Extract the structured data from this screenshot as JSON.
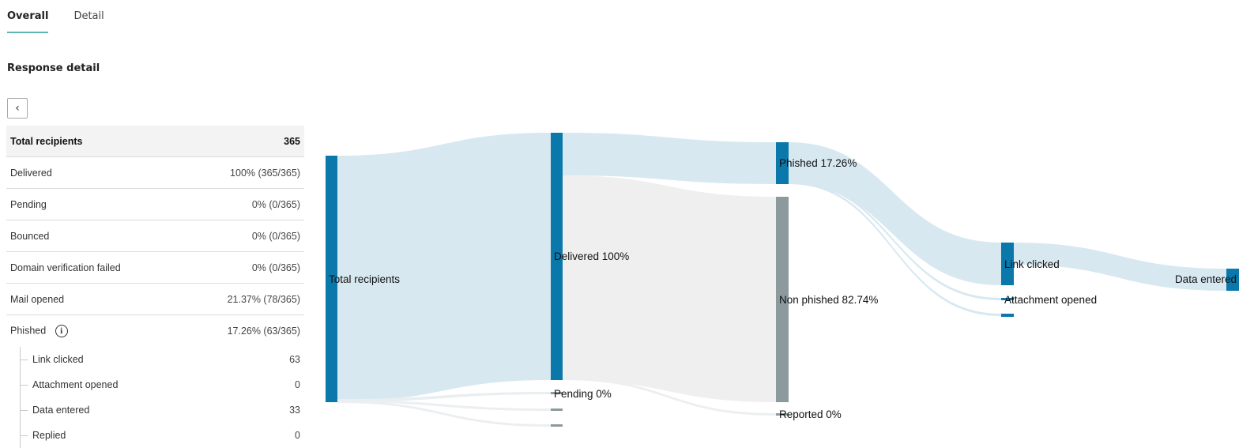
{
  "tabs": [
    {
      "label": "Overall",
      "active": true
    },
    {
      "label": "Detail",
      "active": false
    }
  ],
  "section_title": "Response detail",
  "back_icon": "chevron-left-icon",
  "summary": {
    "header": {
      "label": "Total recipients",
      "value": "365"
    },
    "rows": [
      {
        "label": "Delivered",
        "value": "100% (365/365)"
      },
      {
        "label": "Pending",
        "value": "0% (0/365)"
      },
      {
        "label": "Bounced",
        "value": "0% (0/365)"
      },
      {
        "label": "Domain verification failed",
        "value": "0% (0/365)"
      },
      {
        "label": "Mail opened",
        "value": "21.37% (78/365)"
      },
      {
        "label": "Phished",
        "value": "17.26% (63/365)",
        "info_icon": "i"
      }
    ],
    "subrows": [
      {
        "label": "Link clicked",
        "value": "63"
      },
      {
        "label": "Attachment opened",
        "value": "0"
      },
      {
        "label": "Data entered",
        "value": "33"
      },
      {
        "label": "Replied",
        "value": "0"
      }
    ]
  },
  "sankey": {
    "labels": {
      "total": "Total recipients",
      "delivered": "Delivered 100%",
      "pending": "Pending 0%",
      "phished": "Phished 17.26%",
      "non_phished": "Non phished 82.74%",
      "reported": "Reported 0%",
      "link_clicked": "Link clicked",
      "attachment_opened": "Attachment opened",
      "data_entered": "Data entered"
    },
    "colors": {
      "node": "#0a78ab",
      "node_gray": "#8c9a9e",
      "flow_blue": "#d7e8f1",
      "flow_gray": "#efeff0"
    }
  }
}
